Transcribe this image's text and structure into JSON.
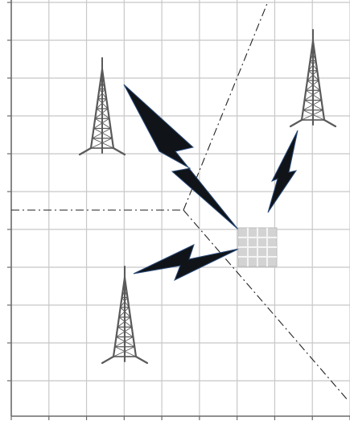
{
  "diagram": {
    "grid": {
      "columns": 9,
      "rows": 11,
      "line_color": "#c8c8c8",
      "axis_color": "#6a6a6a"
    },
    "colors": {
      "tower": "#5a5a5a",
      "bolt_fill": "#101418",
      "bolt_edge": "#2a4a7a",
      "boundary": "#222222",
      "receiver_fill": "#d3d3d3",
      "receiver_lines": "#f4f4f4"
    },
    "towers": [
      {
        "id": "tower-top-left",
        "icon": "radio-tower-icon"
      },
      {
        "id": "tower-top-right",
        "icon": "radio-tower-icon"
      },
      {
        "id": "tower-bottom-left",
        "icon": "radio-tower-icon"
      }
    ],
    "signals": [
      {
        "id": "signal-from-top-left",
        "icon": "lightning-bolt-icon"
      },
      {
        "id": "signal-from-top-right",
        "icon": "lightning-bolt-icon"
      },
      {
        "id": "signal-from-bottom-left",
        "icon": "lightning-bolt-icon"
      }
    ],
    "receiver": {
      "icon": "grid-receiver-icon"
    },
    "boundaries": {
      "style": "dash-dot",
      "count": 3
    }
  }
}
